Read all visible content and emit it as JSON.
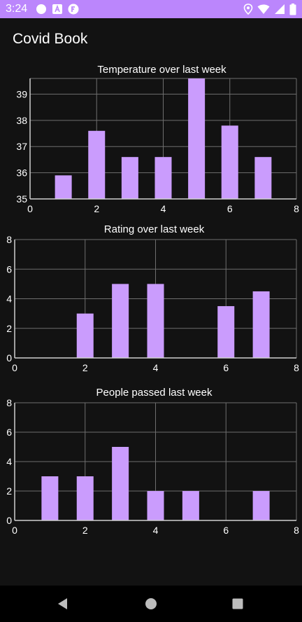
{
  "status_bar": {
    "time": "3:24",
    "background_color": "#bb86fc",
    "left_icons": [
      "circle-notification-icon",
      "a-notification-icon",
      "f-notification-icon"
    ],
    "right_icons": [
      "location-icon",
      "wifi-icon",
      "signal-icon",
      "battery-icon"
    ]
  },
  "app_bar": {
    "title": "Covid Book"
  },
  "colors": {
    "background": "#121212",
    "bar": "#ca9cfd",
    "grid": "#6e6e6e",
    "axis": "#d0d0d0",
    "nav_background": "#000000"
  },
  "chart_data": [
    {
      "type": "bar",
      "title": "Temperature over last week",
      "x": [
        1,
        2,
        3,
        4,
        5,
        6,
        7
      ],
      "values": [
        35.9,
        37.6,
        36.6,
        36.6,
        39.6,
        37.8,
        36.6
      ],
      "xlim": [
        0,
        8
      ],
      "ylim": [
        35,
        39.6
      ],
      "xticks": [
        0,
        2,
        4,
        6,
        8
      ],
      "yticks": [
        35,
        36,
        37,
        38,
        39
      ],
      "grid": true,
      "xlabel": "",
      "ylabel": ""
    },
    {
      "type": "bar",
      "title": "Rating over last week",
      "x": [
        1,
        2,
        3,
        4,
        5,
        6,
        7
      ],
      "values": [
        0,
        3,
        5,
        5,
        0,
        3.5,
        4.5
      ],
      "xlim": [
        0,
        8
      ],
      "ylim": [
        0,
        8
      ],
      "xticks": [
        0,
        2,
        4,
        6,
        8
      ],
      "yticks": [
        0,
        2,
        4,
        6,
        8
      ],
      "grid": true,
      "xlabel": "",
      "ylabel": ""
    },
    {
      "type": "bar",
      "title": "People passed last week",
      "x": [
        1,
        2,
        3,
        4,
        5,
        6,
        7
      ],
      "values": [
        3,
        3,
        5,
        2,
        2,
        0,
        2
      ],
      "xlim": [
        0,
        8
      ],
      "ylim": [
        0,
        8
      ],
      "xticks": [
        0,
        2,
        4,
        6,
        8
      ],
      "yticks": [
        0,
        2,
        4,
        6,
        8
      ],
      "grid": true,
      "xlabel": "",
      "ylabel": ""
    }
  ],
  "nav_bar": {
    "back_icon": "back-triangle-icon",
    "home_icon": "home-circle-icon",
    "recents_icon": "recents-square-icon"
  }
}
